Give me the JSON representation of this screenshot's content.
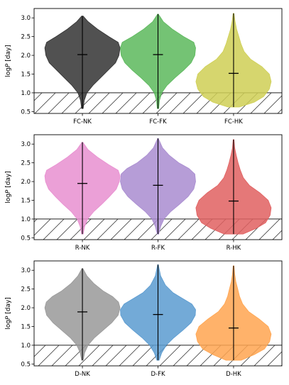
{
  "chart_data": [
    {
      "type": "violin",
      "ylabel": "log P [day]",
      "ylim": [
        0.45,
        3.25
      ],
      "yticks": [
        "0.5",
        "1.0",
        "1.5",
        "2.0",
        "2.5",
        "3.0"
      ],
      "threshold": 1.0,
      "categories": [
        "FC-NK",
        "FC-FK",
        "FC-HK"
      ],
      "series": [
        {
          "color": "#333333",
          "median": 2.02,
          "min": 0.58,
          "max": 3.05,
          "profile": [
            [
              0.58,
              0.02
            ],
            [
              0.8,
              0.05
            ],
            [
              1.0,
              0.12
            ],
            [
              1.2,
              0.28
            ],
            [
              1.4,
              0.48
            ],
            [
              1.6,
              0.68
            ],
            [
              1.8,
              0.88
            ],
            [
              2.0,
              0.97
            ],
            [
              2.2,
              1.0
            ],
            [
              2.35,
              0.95
            ],
            [
              2.5,
              0.7
            ],
            [
              2.7,
              0.4
            ],
            [
              2.9,
              0.15
            ],
            [
              3.05,
              0.02
            ]
          ]
        },
        {
          "color": "#5cb85c",
          "median": 2.02,
          "min": 0.58,
          "max": 3.1,
          "profile": [
            [
              0.58,
              0.02
            ],
            [
              0.8,
              0.04
            ],
            [
              1.0,
              0.1
            ],
            [
              1.2,
              0.24
            ],
            [
              1.4,
              0.45
            ],
            [
              1.6,
              0.68
            ],
            [
              1.8,
              0.88
            ],
            [
              2.0,
              0.98
            ],
            [
              2.2,
              1.0
            ],
            [
              2.35,
              0.95
            ],
            [
              2.5,
              0.68
            ],
            [
              2.7,
              0.38
            ],
            [
              2.9,
              0.14
            ],
            [
              3.1,
              0.01
            ]
          ]
        },
        {
          "color": "#cfcf55",
          "median": 1.52,
          "min": 0.62,
          "max": 3.12,
          "profile": [
            [
              0.62,
              0.15
            ],
            [
              0.75,
              0.55
            ],
            [
              0.9,
              0.8
            ],
            [
              1.1,
              0.95
            ],
            [
              1.3,
              1.0
            ],
            [
              1.5,
              0.95
            ],
            [
              1.7,
              0.75
            ],
            [
              1.9,
              0.45
            ],
            [
              2.1,
              0.28
            ],
            [
              2.3,
              0.2
            ],
            [
              2.5,
              0.14
            ],
            [
              2.7,
              0.08
            ],
            [
              2.9,
              0.04
            ],
            [
              3.12,
              0.01
            ]
          ]
        }
      ]
    },
    {
      "type": "violin",
      "ylabel": "log P [day]",
      "ylim": [
        0.45,
        3.25
      ],
      "yticks": [
        "0.5",
        "1.0",
        "1.5",
        "2.0",
        "2.5",
        "3.0"
      ],
      "threshold": 1.0,
      "categories": [
        "R-NK",
        "R-FK",
        "R-HK"
      ],
      "series": [
        {
          "color": "#e88fd0",
          "median": 1.95,
          "min": 0.6,
          "max": 3.05,
          "profile": [
            [
              0.6,
              0.02
            ],
            [
              0.8,
              0.06
            ],
            [
              1.0,
              0.14
            ],
            [
              1.2,
              0.3
            ],
            [
              1.4,
              0.52
            ],
            [
              1.6,
              0.72
            ],
            [
              1.8,
              0.9
            ],
            [
              2.0,
              0.98
            ],
            [
              2.15,
              1.0
            ],
            [
              2.3,
              0.95
            ],
            [
              2.45,
              0.7
            ],
            [
              2.65,
              0.4
            ],
            [
              2.85,
              0.15
            ],
            [
              3.05,
              0.01
            ]
          ]
        },
        {
          "color": "#a98cd0",
          "median": 1.9,
          "min": 0.6,
          "max": 3.15,
          "profile": [
            [
              0.6,
              0.02
            ],
            [
              0.8,
              0.07
            ],
            [
              1.0,
              0.16
            ],
            [
              1.2,
              0.34
            ],
            [
              1.4,
              0.58
            ],
            [
              1.6,
              0.8
            ],
            [
              1.8,
              0.95
            ],
            [
              2.0,
              1.0
            ],
            [
              2.2,
              0.98
            ],
            [
              2.35,
              0.82
            ],
            [
              2.5,
              0.55
            ],
            [
              2.7,
              0.3
            ],
            [
              2.9,
              0.12
            ],
            [
              3.15,
              0.01
            ]
          ]
        },
        {
          "color": "#e06060",
          "median": 1.48,
          "min": 0.6,
          "max": 3.12,
          "profile": [
            [
              0.6,
              0.25
            ],
            [
              0.75,
              0.6
            ],
            [
              0.9,
              0.85
            ],
            [
              1.1,
              0.97
            ],
            [
              1.3,
              1.0
            ],
            [
              1.5,
              0.92
            ],
            [
              1.7,
              0.7
            ],
            [
              1.9,
              0.42
            ],
            [
              2.1,
              0.26
            ],
            [
              2.3,
              0.18
            ],
            [
              2.5,
              0.12
            ],
            [
              2.7,
              0.07
            ],
            [
              2.9,
              0.03
            ],
            [
              3.12,
              0.01
            ]
          ]
        }
      ]
    },
    {
      "type": "violin",
      "ylabel": "log P [day]",
      "ylim": [
        0.45,
        3.25
      ],
      "yticks": [
        "0.5",
        "1.0",
        "1.5",
        "2.0",
        "2.5",
        "3.0"
      ],
      "threshold": 1.0,
      "categories": [
        "D-NK",
        "D-FK",
        "D-HK"
      ],
      "series": [
        {
          "color": "#999999",
          "median": 1.89,
          "min": 0.6,
          "max": 3.05,
          "profile": [
            [
              0.6,
              0.02
            ],
            [
              0.8,
              0.06
            ],
            [
              1.0,
              0.15
            ],
            [
              1.2,
              0.32
            ],
            [
              1.4,
              0.55
            ],
            [
              1.6,
              0.78
            ],
            [
              1.8,
              0.95
            ],
            [
              2.0,
              1.0
            ],
            [
              2.15,
              0.96
            ],
            [
              2.3,
              0.8
            ],
            [
              2.45,
              0.55
            ],
            [
              2.65,
              0.3
            ],
            [
              2.85,
              0.12
            ],
            [
              3.05,
              0.01
            ]
          ]
        },
        {
          "color": "#5b9bd0",
          "median": 1.82,
          "min": 0.6,
          "max": 3.15,
          "profile": [
            [
              0.6,
              0.03
            ],
            [
              0.8,
              0.1
            ],
            [
              1.0,
              0.22
            ],
            [
              1.2,
              0.42
            ],
            [
              1.4,
              0.66
            ],
            [
              1.6,
              0.88
            ],
            [
              1.8,
              0.99
            ],
            [
              1.95,
              1.0
            ],
            [
              2.1,
              0.9
            ],
            [
              2.25,
              0.65
            ],
            [
              2.4,
              0.4
            ],
            [
              2.6,
              0.2
            ],
            [
              2.85,
              0.07
            ],
            [
              3.15,
              0.01
            ]
          ]
        },
        {
          "color": "#ffa550",
          "median": 1.46,
          "min": 0.6,
          "max": 3.12,
          "profile": [
            [
              0.6,
              0.2
            ],
            [
              0.75,
              0.55
            ],
            [
              0.9,
              0.82
            ],
            [
              1.1,
              0.96
            ],
            [
              1.3,
              1.0
            ],
            [
              1.5,
              0.92
            ],
            [
              1.7,
              0.68
            ],
            [
              1.9,
              0.4
            ],
            [
              2.1,
              0.24
            ],
            [
              2.3,
              0.16
            ],
            [
              2.5,
              0.11
            ],
            [
              2.7,
              0.06
            ],
            [
              2.9,
              0.03
            ],
            [
              3.12,
              0.01
            ]
          ]
        }
      ]
    }
  ]
}
